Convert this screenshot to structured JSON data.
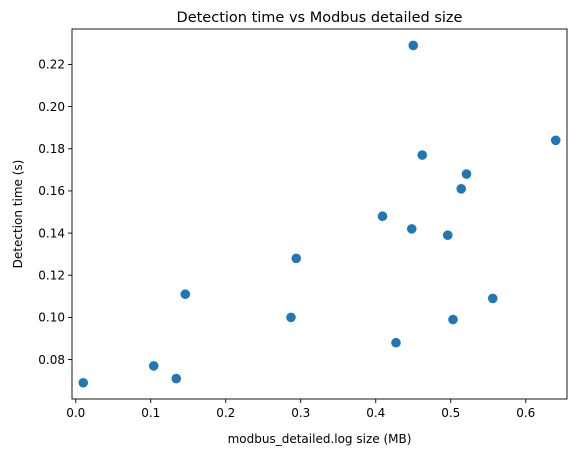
{
  "chart_data": {
    "type": "scatter",
    "title": "Detection time vs Modbus detailed size",
    "xlabel": "modbus_detailed.log size (MB)",
    "ylabel": "Detection time (s)",
    "xlim": [
      -0.005,
      0.655
    ],
    "ylim": [
      0.0613,
      0.2368
    ],
    "x_ticks": [
      0.0,
      0.1,
      0.2,
      0.3,
      0.4,
      0.5,
      0.6
    ],
    "x_tick_labels": [
      "0.0",
      "0.1",
      "0.2",
      "0.3",
      "0.4",
      "0.5",
      "0.6"
    ],
    "y_ticks": [
      0.08,
      0.1,
      0.12,
      0.14,
      0.16,
      0.18,
      0.2,
      0.22
    ],
    "y_tick_labels": [
      "0.08",
      "0.10",
      "0.12",
      "0.14",
      "0.16",
      "0.18",
      "0.20",
      "0.22"
    ],
    "grid": false,
    "marker_color": "#1f77b4",
    "points": [
      {
        "x": 0.01,
        "y": 0.069
      },
      {
        "x": 0.104,
        "y": 0.077
      },
      {
        "x": 0.134,
        "y": 0.071
      },
      {
        "x": 0.146,
        "y": 0.111
      },
      {
        "x": 0.287,
        "y": 0.1
      },
      {
        "x": 0.294,
        "y": 0.128
      },
      {
        "x": 0.409,
        "y": 0.148
      },
      {
        "x": 0.427,
        "y": 0.088
      },
      {
        "x": 0.448,
        "y": 0.142
      },
      {
        "x": 0.45,
        "y": 0.229
      },
      {
        "x": 0.462,
        "y": 0.177
      },
      {
        "x": 0.496,
        "y": 0.139
      },
      {
        "x": 0.503,
        "y": 0.099
      },
      {
        "x": 0.514,
        "y": 0.161
      },
      {
        "x": 0.521,
        "y": 0.168
      },
      {
        "x": 0.556,
        "y": 0.109
      },
      {
        "x": 0.64,
        "y": 0.184
      }
    ]
  }
}
